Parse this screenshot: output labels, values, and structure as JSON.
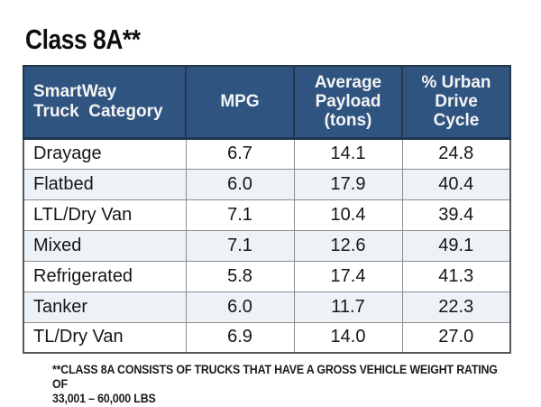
{
  "page": {
    "title": "Class 8A**"
  },
  "table": {
    "header": {
      "category": {
        "line1": "SmartWay",
        "line2": "Truck  Category"
      },
      "mpg": {
        "line1": "MPG"
      },
      "payload": {
        "line1": "Average",
        "line2": "Payload",
        "line3": "(tons)"
      },
      "urban": {
        "line1": "% Urban",
        "line2": "Drive",
        "line3": "Cycle"
      }
    },
    "rows": [
      {
        "category": "Drayage",
        "mpg": "6.7",
        "payload": "14.1",
        "urban": "24.8"
      },
      {
        "category": "Flatbed",
        "mpg": "6.0",
        "payload": "17.9",
        "urban": "40.4"
      },
      {
        "category": "LTL/Dry Van",
        "mpg": "7.1",
        "payload": "10.4",
        "urban": "39.4"
      },
      {
        "category": "Mixed",
        "mpg": "7.1",
        "payload": "12.6",
        "urban": "49.1"
      },
      {
        "category": "Refrigerated",
        "mpg": "5.8",
        "payload": "17.4",
        "urban": "41.3"
      },
      {
        "category": "Tanker",
        "mpg": "6.0",
        "payload": "11.7",
        "urban": "22.3"
      },
      {
        "category": "TL/Dry Van",
        "mpg": "6.9",
        "payload": "14.0",
        "urban": "27.0"
      }
    ]
  },
  "footnote": {
    "line1": "**CLASS 8A CONSISTS OF TRUCKS THAT HAVE A GROSS VEHICLE WEIGHT RATING OF",
    "line2": "33,001 – 60,000 LBS"
  },
  "colors": {
    "header_bg": "#2F5480",
    "header_text": "#F4F4F4",
    "row_alt_bg": "#EDF2F7",
    "row_bg": "#FFFFFF",
    "inner_border": "#8A8E91",
    "outer_border": "#55595E",
    "header_divider": "#1E3550",
    "body_text": "#161616"
  },
  "chart_data": {
    "type": "table",
    "title": "Class 8A**",
    "columns": [
      "SmartWay Truck Category",
      "MPG",
      "Average Payload (tons)",
      "% Urban Drive Cycle"
    ],
    "rows": [
      [
        "Drayage",
        6.7,
        14.1,
        24.8
      ],
      [
        "Flatbed",
        6.0,
        17.9,
        40.4
      ],
      [
        "LTL/Dry Van",
        7.1,
        10.4,
        39.4
      ],
      [
        "Mixed",
        7.1,
        12.6,
        49.1
      ],
      [
        "Refrigerated",
        5.8,
        17.4,
        41.3
      ],
      [
        "Tanker",
        6.0,
        11.7,
        22.3
      ],
      [
        "TL/Dry Van",
        6.9,
        14.0,
        27.0
      ]
    ],
    "footnote": "**CLASS 8A CONSISTS OF TRUCKS THAT HAVE A GROSS VEHICLE WEIGHT RATING OF 33,001 – 60,000 LBS",
    "layout_hints": {
      "header_fill": "#2F5480",
      "zebra_striping": true,
      "first_column_align": "left",
      "numeric_align": "center"
    }
  }
}
